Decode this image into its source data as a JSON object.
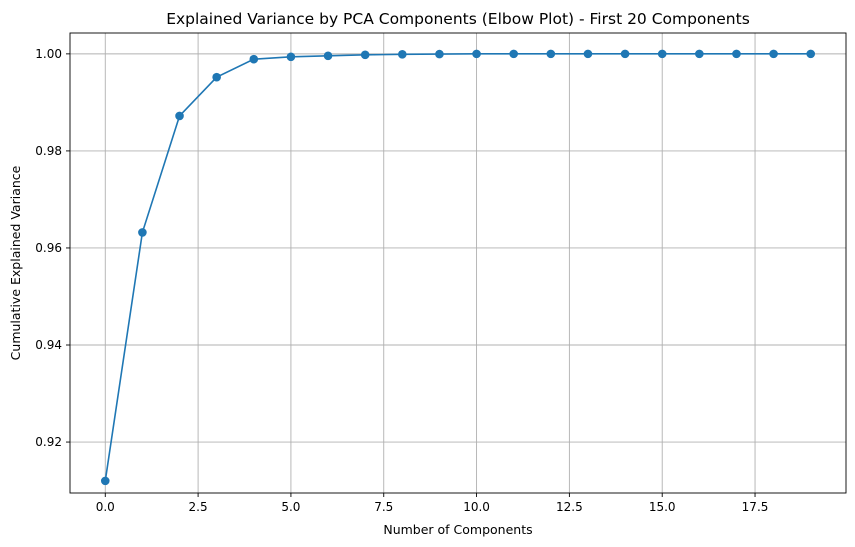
{
  "chart_data": {
    "type": "line",
    "title": "Explained Variance by PCA Components (Elbow Plot) - First 20 Components",
    "xlabel": "Number of Components",
    "ylabel": "Cumulative Explained Variance",
    "xlim": [
      -0.95,
      19.95
    ],
    "ylim": [
      0.9095,
      1.0043
    ],
    "xticks": [
      0,
      2.5,
      5,
      7.5,
      10,
      12.5,
      15,
      17.5
    ],
    "xtick_labels": [
      "0.0",
      "2.5",
      "5.0",
      "7.5",
      "10.0",
      "12.5",
      "15.0",
      "17.5"
    ],
    "yticks": [
      0.92,
      0.94,
      0.96,
      0.98,
      1.0
    ],
    "ytick_labels": [
      "0.92",
      "0.94",
      "0.96",
      "0.98",
      "1.00"
    ],
    "grid": true,
    "marker": "circle",
    "color": "#1f77b4",
    "series": [
      {
        "x": [
          0,
          1,
          2,
          3,
          4,
          5,
          6,
          7,
          8,
          9,
          10,
          11,
          12,
          13,
          14,
          15,
          16,
          17,
          18,
          19
        ],
        "values": [
          0.912,
          0.9632,
          0.9872,
          0.9952,
          0.9989,
          0.9994,
          0.9996,
          0.9998,
          0.9999,
          0.99995,
          1.0,
          1.0,
          1.0,
          1.0,
          1.0,
          1.0,
          1.0,
          1.0,
          1.0,
          1.0
        ]
      }
    ]
  }
}
